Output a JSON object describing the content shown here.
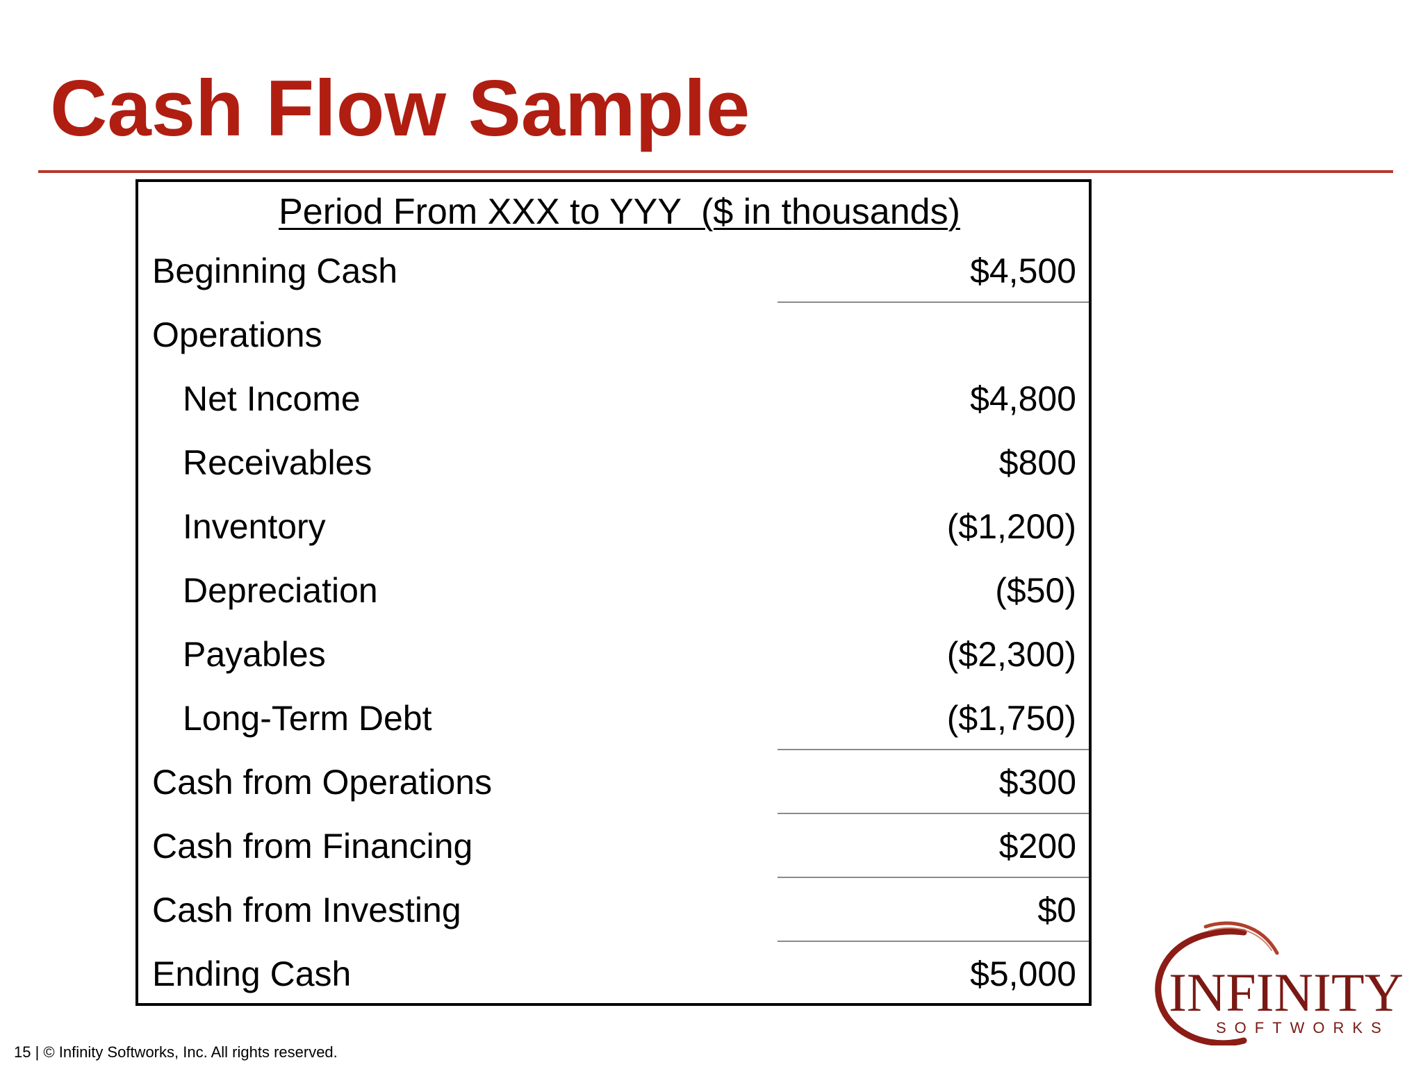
{
  "slide": {
    "title": "Cash Flow Sample",
    "footer": "15 | © Infinity Softworks, Inc. All rights reserved."
  },
  "statement": {
    "header": "Period From XXX to YYY  ($ in thousands)",
    "rows": [
      {
        "label": "Beginning Cash",
        "value": "$4,500"
      },
      {
        "label": "Operations",
        "value": ""
      },
      {
        "label": "Net Income",
        "value": "$4,800"
      },
      {
        "label": "Receivables",
        "value": "$800"
      },
      {
        "label": "Inventory",
        "value": "($1,200)"
      },
      {
        "label": "Depreciation",
        "value": "($50)"
      },
      {
        "label": "Payables",
        "value": "($2,300)"
      },
      {
        "label": "Long-Term Debt",
        "value": "($1,750)"
      },
      {
        "label": "Cash from Operations",
        "value": "$300"
      },
      {
        "label": "Cash from Financing",
        "value": "$200"
      },
      {
        "label": "Cash from Investing",
        "value": "$0"
      },
      {
        "label": "Ending Cash",
        "value": "$5,000"
      }
    ]
  },
  "logo": {
    "name": "INFINITY",
    "subtitle": "SOFTWORKS",
    "color": "#7a1914"
  },
  "colors": {
    "title": "#b01e12",
    "rule": "#b8372a"
  }
}
